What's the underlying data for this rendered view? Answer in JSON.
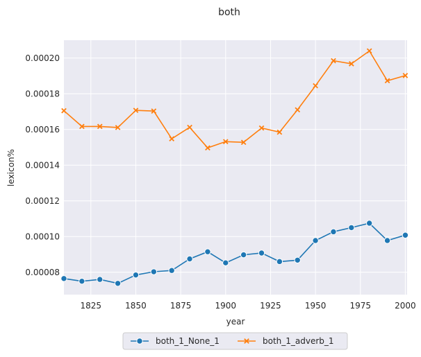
{
  "chart_data": {
    "type": "line",
    "title": "both",
    "xlabel": "year",
    "ylabel": "lexicon%",
    "xlim": [
      1810,
      2001
    ],
    "ylim": [
      6.75e-05,
      0.00021
    ],
    "x_ticks": [
      "1825",
      "1850",
      "1875",
      "1900",
      "1925",
      "1950",
      "1975",
      "2000"
    ],
    "y_ticks": [
      "0.00008",
      "0.00010",
      "0.00012",
      "0.00014",
      "0.00016",
      "0.00018",
      "0.00020"
    ],
    "grid": true,
    "legend_position": "bottom-center",
    "x": [
      1810,
      1820,
      1830,
      1840,
      1850,
      1860,
      1870,
      1880,
      1890,
      1900,
      1910,
      1920,
      1930,
      1940,
      1950,
      1960,
      1970,
      1980,
      1990,
      2000
    ],
    "series": [
      {
        "name": "both_1_None_1",
        "color": "#1f77b4",
        "marker": "circle",
        "values": [
          7.65e-05,
          7.5e-05,
          7.6e-05,
          7.38e-05,
          7.85e-05,
          8.03e-05,
          8.1e-05,
          8.75e-05,
          9.15e-05,
          8.53e-05,
          8.98e-05,
          9.08e-05,
          8.6e-05,
          8.68e-05,
          9.78e-05,
          0.0001027,
          0.000105,
          0.0001075,
          9.78e-05,
          0.0001008
        ]
      },
      {
        "name": "both_1_adverb_1",
        "color": "#ff7f0e",
        "marker": "x",
        "values": [
          0.0001705,
          0.0001617,
          0.0001617,
          0.0001611,
          0.0001707,
          0.0001703,
          0.0001548,
          0.0001612,
          0.0001497,
          0.0001532,
          0.0001528,
          0.0001608,
          0.0001585,
          0.000171,
          0.0001845,
          0.0001985,
          0.0001968,
          0.000204,
          0.0001873,
          0.0001902
        ]
      }
    ]
  }
}
